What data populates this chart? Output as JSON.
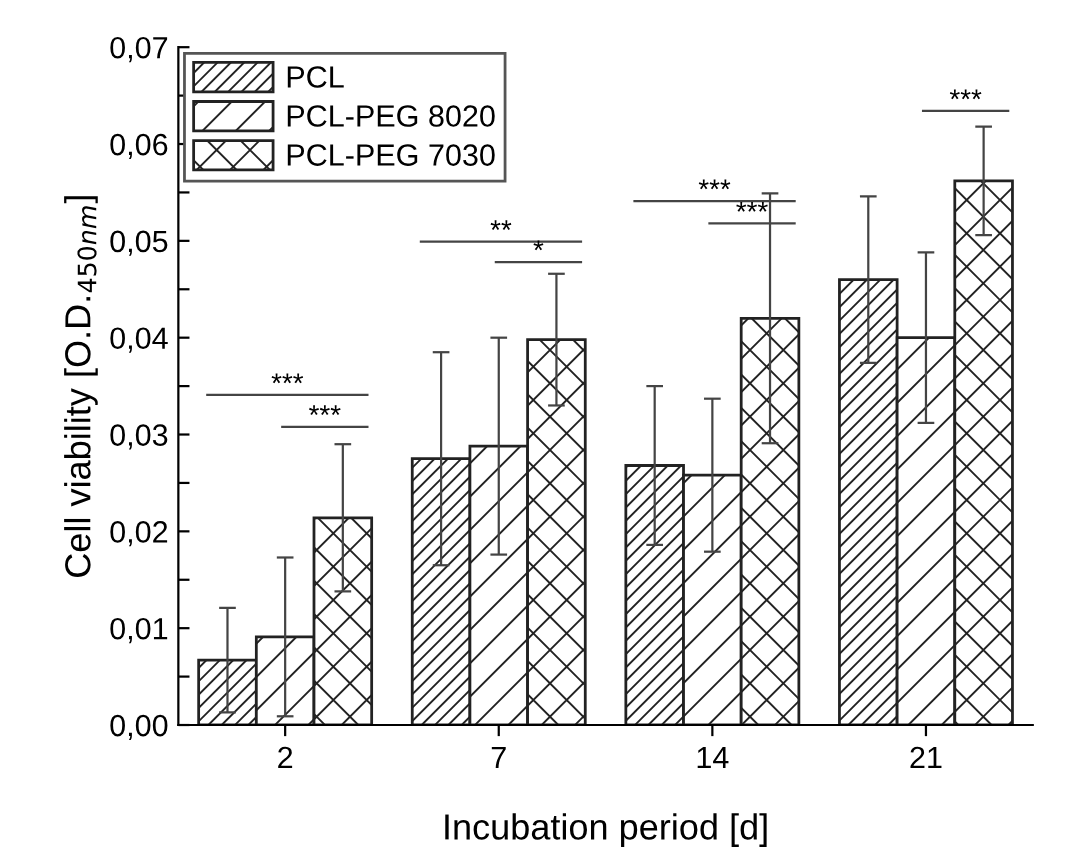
{
  "chart_data": {
    "type": "bar",
    "xlabel": "Incubation period [d]",
    "ylabel": "Cell viability [O.D.$_{450nm}$]",
    "categories": [
      "2",
      "7",
      "14",
      "21"
    ],
    "series": [
      {
        "name": "PCL",
        "color": "#222222",
        "values": [
          0.0067,
          0.0275,
          0.0268,
          0.046
        ],
        "errors": [
          0.0054,
          0.011,
          0.0082,
          0.0086
        ]
      },
      {
        "name": "PCL-PEG 8020",
        "color": "#222222",
        "values": [
          0.0091,
          0.0288,
          0.0258,
          0.04
        ],
        "errors": [
          0.0082,
          0.0112,
          0.0079,
          0.0088
        ]
      },
      {
        "name": "PCL-PEG 7030",
        "color": "#222222",
        "values": [
          0.0214,
          0.0398,
          0.042,
          0.0562
        ],
        "errors": [
          0.0076,
          0.0068,
          0.0129,
          0.0056
        ]
      }
    ],
    "ylim": [
      0,
      0.07
    ],
    "yticks": [
      {
        "value": 0,
        "label": "0,00"
      },
      {
        "value": 0.005,
        "label": null
      },
      {
        "value": 0.01,
        "label": "0,01"
      },
      {
        "value": 0.015,
        "label": null
      },
      {
        "value": 0.02,
        "label": "0,02"
      },
      {
        "value": 0.025,
        "label": null
      },
      {
        "value": 0.03,
        "label": "0,03"
      },
      {
        "value": 0.035,
        "label": null
      },
      {
        "value": 0.04,
        "label": "0,04"
      },
      {
        "value": 0.045,
        "label": null
      },
      {
        "value": 0.05,
        "label": "0,05"
      },
      {
        "value": 0.055,
        "label": null
      },
      {
        "value": 0.06,
        "label": "0,06"
      },
      {
        "value": 0.065,
        "label": null
      },
      {
        "value": 0.07,
        "label": "0,07"
      }
    ],
    "annotations": [
      "***",
      "***",
      "**",
      "*",
      "***",
      "***",
      "***"
    ],
    "legend": "top left",
    "grid": false
  }
}
